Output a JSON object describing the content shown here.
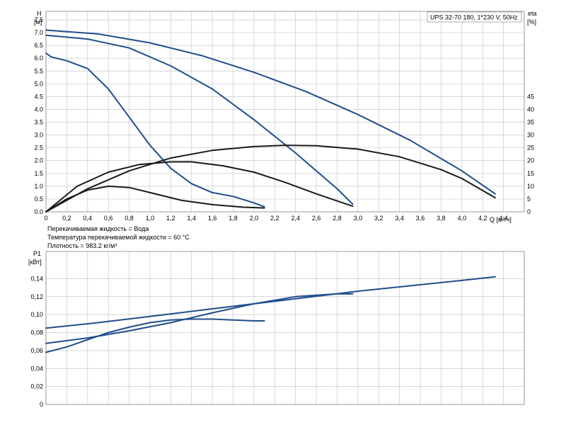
{
  "info_lines": [
    "Перекачиваемая жидкость = Вода",
    "Температура перекачиваемой жидкости = 60 °C",
    "Плотность = 983.2 кг/м³"
  ],
  "colors": {
    "head": "#1f4e8c",
    "eff": "#1a1a1a",
    "grid": "#c8c8c8",
    "frame": "#9a9a9a"
  },
  "chart_data": [
    {
      "type": "line",
      "title": "UPS 32-70 180, 1*230 V, 50Hz",
      "ylabel_name": "H",
      "ylabel_unit": "[м]",
      "y2label_name": "eta",
      "y2label_unit": "[%]",
      "xlabel": "Q [м³/ч]",
      "xlim": [
        0,
        4.6
      ],
      "ylim": [
        0,
        7.5
      ],
      "y2lim": [
        0,
        75
      ],
      "x_ticks": [
        "0",
        "0,2",
        "0,4",
        "0,6",
        "0,8",
        "1,0",
        "1,2",
        "1,4",
        "1,6",
        "1,8",
        "2,0",
        "2,2",
        "2,4",
        "2,6",
        "2,8",
        "3,0",
        "3,2",
        "3,4",
        "3,6",
        "3,8",
        "4,0",
        "4,2",
        "4,4"
      ],
      "y_ticks": [
        "0.0",
        "0.5",
        "1.0",
        "1.5",
        "2.0",
        "2.5",
        "3.0",
        "3.5",
        "4.0",
        "4.5",
        "5.0",
        "5.5",
        "6.0",
        "6.5",
        "7.0",
        "7.5"
      ],
      "y2_ticks": [
        "0",
        "5",
        "10",
        "15",
        "20",
        "25",
        "30",
        "35",
        "40",
        "45"
      ],
      "grid": true,
      "series": [
        {
          "kind": "head",
          "x": [
            0,
            0.5,
            1.0,
            1.5,
            2.0,
            2.5,
            3.0,
            3.5,
            4.0,
            4.32
          ],
          "y": [
            7.1,
            6.95,
            6.6,
            6.1,
            5.45,
            4.7,
            3.8,
            2.8,
            1.6,
            0.7
          ]
        },
        {
          "kind": "head",
          "x": [
            0,
            0.4,
            0.8,
            1.2,
            1.6,
            2.0,
            2.4,
            2.8,
            2.95
          ],
          "y": [
            6.9,
            6.75,
            6.4,
            5.7,
            4.8,
            3.6,
            2.3,
            0.9,
            0.3
          ]
        },
        {
          "kind": "head",
          "x": [
            0,
            0.05,
            0.2,
            0.4,
            0.6,
            0.8,
            1.0,
            1.2,
            1.4,
            1.6,
            1.8,
            2.0,
            2.1
          ],
          "y": [
            6.2,
            6.05,
            5.9,
            5.6,
            4.8,
            3.7,
            2.6,
            1.7,
            1.1,
            0.75,
            0.6,
            0.35,
            0.2
          ]
        },
        {
          "kind": "eff",
          "x": [
            0,
            0.4,
            0.8,
            1.2,
            1.6,
            2.0,
            2.3,
            2.6,
            3.0,
            3.4,
            3.8,
            4.0,
            4.32
          ],
          "y": [
            0,
            9,
            16,
            21,
            24,
            25.5,
            26,
            25.8,
            24.5,
            21.5,
            16.5,
            13,
            5.5
          ]
        },
        {
          "kind": "eff",
          "x": [
            0,
            0.3,
            0.6,
            0.9,
            1.2,
            1.4,
            1.7,
            2.0,
            2.3,
            2.6,
            2.95
          ],
          "y": [
            0,
            10,
            15.5,
            18.5,
            19.5,
            19.5,
            18,
            15.5,
            11.5,
            7,
            2.2
          ]
        },
        {
          "kind": "eff",
          "x": [
            0,
            0.2,
            0.4,
            0.6,
            0.8,
            1.0,
            1.3,
            1.6,
            1.9,
            2.1
          ],
          "y": [
            0,
            5,
            8.5,
            10,
            9.5,
            7.5,
            4.5,
            2.8,
            1.8,
            1.5
          ]
        }
      ]
    },
    {
      "type": "line",
      "ylabel_name": "P1",
      "ylabel_unit": "[кВт]",
      "xlim": [
        0,
        4.6
      ],
      "ylim": [
        0,
        0.16
      ],
      "y_ticks": [
        "0",
        "0,02",
        "0,04",
        "0,06",
        "0,08",
        "0,10",
        "0,12",
        "0,14"
      ],
      "grid": true,
      "series": [
        {
          "kind": "power",
          "x": [
            0,
            0.5,
            1.0,
            1.5,
            2.0,
            2.5,
            3.0,
            3.5,
            4.0,
            4.32
          ],
          "y": [
            0.085,
            0.091,
            0.098,
            0.105,
            0.112,
            0.119,
            0.126,
            0.132,
            0.138,
            0.142
          ]
        },
        {
          "kind": "power",
          "x": [
            0,
            0.4,
            0.8,
            1.2,
            1.6,
            2.0,
            2.4,
            2.8,
            2.95
          ],
          "y": [
            0.068,
            0.074,
            0.082,
            0.091,
            0.102,
            0.112,
            0.12,
            0.123,
            0.123
          ]
        },
        {
          "kind": "power",
          "x": [
            0,
            0.2,
            0.4,
            0.6,
            0.8,
            1.0,
            1.2,
            1.4,
            1.6,
            1.8,
            2.0,
            2.1
          ],
          "y": [
            0.058,
            0.064,
            0.072,
            0.08,
            0.086,
            0.091,
            0.094,
            0.095,
            0.095,
            0.094,
            0.093,
            0.093
          ]
        }
      ]
    }
  ]
}
